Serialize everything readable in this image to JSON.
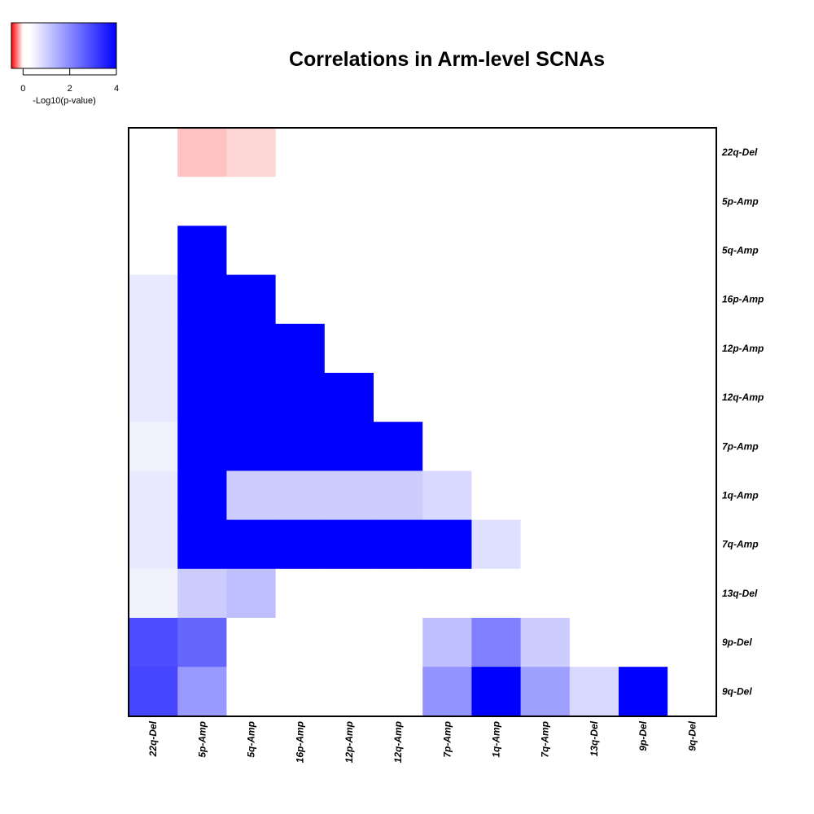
{
  "chart_data": {
    "type": "heatmap",
    "title": "Correlations in Arm-level SCNAs",
    "colorbar": {
      "label": "-Log10(p-value)",
      "ticks": [
        0,
        2,
        4
      ],
      "range": [
        -0.5,
        4
      ],
      "colors": {
        "negative": "#ff0000",
        "zero": "#ffffff",
        "positive": "#0000ff"
      }
    },
    "rows": [
      "22q-Del",
      "5p-Amp",
      "5q-Amp",
      "16p-Amp",
      "12p-Amp",
      "12q-Amp",
      "7p-Amp",
      "1q-Amp",
      "7q-Amp",
      "13q-Del",
      "9p-Del",
      "9q-Del"
    ],
    "columns": [
      "22q-Del",
      "5p-Amp",
      "5q-Amp",
      "16p-Amp",
      "12p-Amp",
      "12q-Amp",
      "7p-Amp",
      "1q-Amp",
      "7q-Amp",
      "13q-Del",
      "9p-Del",
      "9q-Del"
    ],
    "values": [
      [
        0,
        -0.12,
        -0.08,
        0,
        0,
        0,
        0,
        0,
        0,
        0,
        0,
        0
      ],
      [
        0,
        0,
        0,
        0,
        0,
        0,
        0,
        0,
        0,
        0,
        0,
        0
      ],
      [
        0,
        4,
        0,
        0,
        0,
        0,
        0,
        0,
        0,
        0,
        0,
        0
      ],
      [
        0.35,
        4,
        4,
        0,
        0,
        0,
        0,
        0,
        0,
        0,
        0,
        0
      ],
      [
        0.35,
        4,
        4,
        4,
        0,
        0,
        0,
        0,
        0,
        0,
        0,
        0
      ],
      [
        0.35,
        4,
        4,
        4,
        4,
        0,
        0,
        0,
        0,
        0,
        0,
        0
      ],
      [
        0.2,
        4,
        4,
        4,
        4,
        4,
        0,
        0,
        0,
        0,
        0,
        0
      ],
      [
        0.35,
        4,
        0.8,
        0.8,
        0.8,
        0.8,
        0.6,
        0,
        0,
        0,
        0,
        0
      ],
      [
        0.35,
        4,
        4,
        4,
        4,
        4,
        4,
        0.5,
        0,
        0,
        0,
        0
      ],
      [
        0.2,
        0.8,
        1.0,
        0,
        0,
        0,
        0,
        0,
        0,
        0,
        0,
        0
      ],
      [
        2.8,
        2.4,
        0,
        0,
        0,
        0,
        1.0,
        2.0,
        0.8,
        0,
        0,
        0
      ],
      [
        2.9,
        1.6,
        0,
        0,
        0,
        0,
        1.7,
        4,
        1.5,
        0.6,
        4,
        0
      ]
    ]
  }
}
